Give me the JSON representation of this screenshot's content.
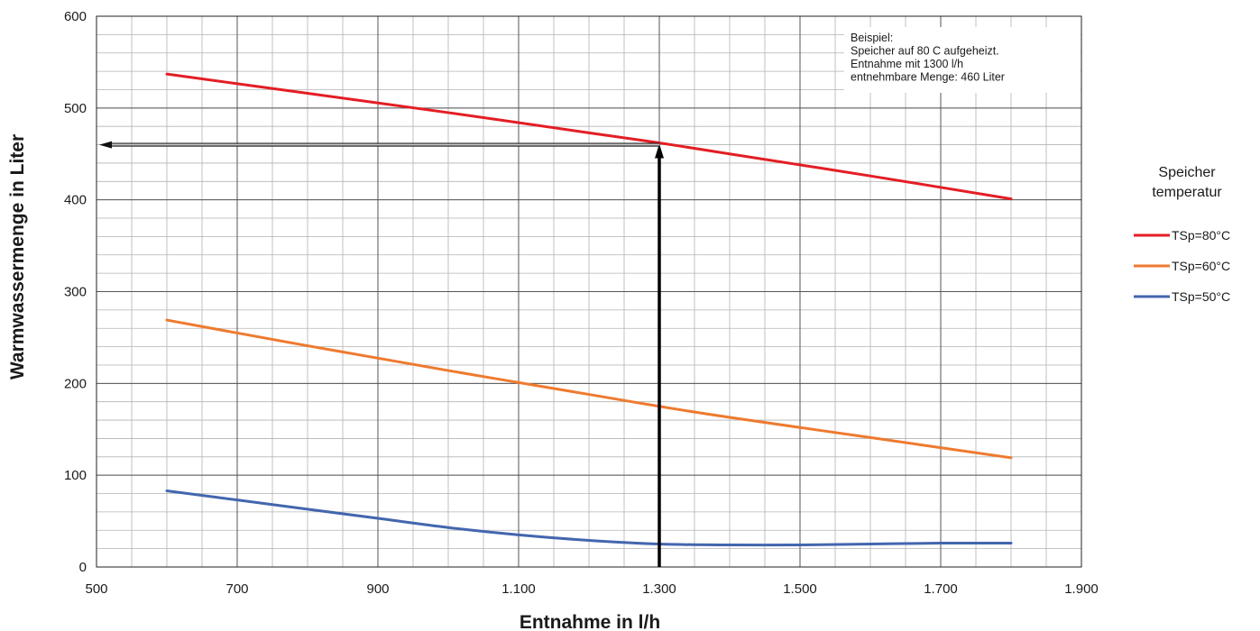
{
  "chart_data": {
    "type": "line",
    "xlabel": "Entnahme in l/h",
    "ylabel": "Warmwassermenge in Liter",
    "xlim": [
      500,
      1900
    ],
    "ylim": [
      0,
      600
    ],
    "x_ticks": [
      {
        "value": 500,
        "label": "500"
      },
      {
        "value": 700,
        "label": "700"
      },
      {
        "value": 900,
        "label": "900"
      },
      {
        "value": 1100,
        "label": "1.100"
      },
      {
        "value": 1300,
        "label": "1.300"
      },
      {
        "value": 1500,
        "label": "1.500"
      },
      {
        "value": 1700,
        "label": "1.700"
      },
      {
        "value": 1900,
        "label": "1.900"
      }
    ],
    "y_ticks": [
      {
        "value": 0,
        "label": "0"
      },
      {
        "value": 100,
        "label": "100"
      },
      {
        "value": 200,
        "label": "200"
      },
      {
        "value": 300,
        "label": "300"
      },
      {
        "value": 400,
        "label": "400"
      },
      {
        "value": 500,
        "label": "500"
      },
      {
        "value": 600,
        "label": "600"
      }
    ],
    "grid": true,
    "x_minor_step": 50,
    "y_minor_step": 20,
    "series": [
      {
        "name": "TSp=80°C",
        "color": "#e31e24",
        "x": [
          600,
          800,
          1000,
          1200,
          1300,
          1400,
          1600,
          1800
        ],
        "y": [
          537,
          516,
          495,
          473,
          462,
          450,
          426,
          401
        ]
      },
      {
        "name": "TSp=60°C",
        "color": "#ee7a2f",
        "x": [
          600,
          800,
          1000,
          1200,
          1300,
          1400,
          1600,
          1800
        ],
        "y": [
          269,
          241,
          214,
          188,
          175,
          163,
          141,
          119
        ]
      },
      {
        "name": "TSp=50°C",
        "color": "#4366ae",
        "x": [
          600,
          700,
          800,
          900,
          1000,
          1100,
          1200,
          1300,
          1400,
          1500,
          1600,
          1700,
          1800
        ],
        "y": [
          83,
          73,
          63,
          53,
          43,
          35,
          29,
          25,
          24,
          24,
          25,
          26,
          26
        ]
      }
    ],
    "annotation": {
      "lines": [
        "Beispiel:",
        "Speicher auf 80  C aufgeheizt.",
        "Entnahme mit 1300 l/h",
        "entnehmbare Menge: 460 Liter"
      ],
      "arrow_up": {
        "x": 1300,
        "y_from": 0,
        "y_to": 462
      },
      "arrow_left": {
        "y": 460,
        "x_from": 1300,
        "x_to": 500
      }
    },
    "legend": {
      "title_lines": [
        "Speicher",
        "temperatur"
      ],
      "placement": "right"
    }
  }
}
